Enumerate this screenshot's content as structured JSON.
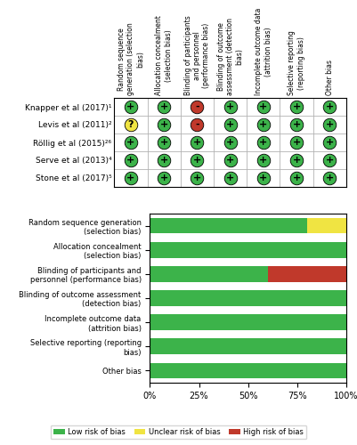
{
  "chart_data": [
    {
      "type": "heatmap",
      "categories": [
        "Random sequence generation (selection bias)",
        "Allocation concealment (selection bias)",
        "Blinding of participants and personnel (performance bias)",
        "Blinding of outcome assessment (detection bias)",
        "Incomplete outcome data (attrition bias)",
        "Selective reporting (reporting bias)",
        "Other bias"
      ],
      "rows": [
        "Knapper et al (2017)¹",
        "Levis et al (2011)²",
        "Röllig et al (2015)²⁶",
        "Serve et al (2013)⁴",
        "Stone et al (2017)⁵"
      ],
      "cells": [
        [
          "+",
          "+",
          "-",
          "+",
          "+",
          "+",
          "+"
        ],
        [
          "?",
          "+",
          "-",
          "+",
          "+",
          "+",
          "+"
        ],
        [
          "+",
          "+",
          "+",
          "+",
          "+",
          "+",
          "+"
        ],
        [
          "+",
          "+",
          "+",
          "+",
          "+",
          "+",
          "+"
        ],
        [
          "+",
          "+",
          "+",
          "+",
          "+",
          "+",
          "+"
        ]
      ],
      "colors": [
        [
          "#3cb34a",
          "#3cb34a",
          "#c0392b",
          "#3cb34a",
          "#3cb34a",
          "#3cb34a",
          "#3cb34a"
        ],
        [
          "#f0e442",
          "#3cb34a",
          "#c0392b",
          "#3cb34a",
          "#3cb34a",
          "#3cb34a",
          "#3cb34a"
        ],
        [
          "#3cb34a",
          "#3cb34a",
          "#3cb34a",
          "#3cb34a",
          "#3cb34a",
          "#3cb34a",
          "#3cb34a"
        ],
        [
          "#3cb34a",
          "#3cb34a",
          "#3cb34a",
          "#3cb34a",
          "#3cb34a",
          "#3cb34a",
          "#3cb34a"
        ],
        [
          "#3cb34a",
          "#3cb34a",
          "#3cb34a",
          "#3cb34a",
          "#3cb34a",
          "#3cb34a",
          "#3cb34a"
        ]
      ]
    },
    {
      "type": "bar",
      "orientation": "horizontal",
      "stacked": true,
      "categories": [
        "Random sequence generation (selection bias)",
        "Allocation concealment (selection bias)",
        "Blinding of participants and personnel (performance bias)",
        "Blinding of outcome assessment (detection bias)",
        "Incomplete outcome data (attrition bias)",
        "Selective reporting (reporting bias)",
        "Other bias"
      ],
      "series": [
        {
          "name": "Low risk of bias",
          "color": "#3cb34a",
          "values": [
            80,
            100,
            60,
            100,
            100,
            100,
            100
          ]
        },
        {
          "name": "Unclear risk of bias",
          "color": "#f0e442",
          "values": [
            20,
            0,
            0,
            0,
            0,
            0,
            0
          ]
        },
        {
          "name": "High risk of bias",
          "color": "#c0392b",
          "values": [
            0,
            0,
            40,
            0,
            0,
            0,
            0
          ]
        }
      ],
      "xlim": [
        0,
        100
      ],
      "xticks": [
        {
          "value": 0,
          "label": "0%"
        },
        {
          "value": 25,
          "label": "25%"
        },
        {
          "value": 50,
          "label": "50%"
        },
        {
          "value": 75,
          "label": "75%"
        },
        {
          "value": 100,
          "label": "100%"
        }
      ],
      "legend": "lower center"
    }
  ]
}
